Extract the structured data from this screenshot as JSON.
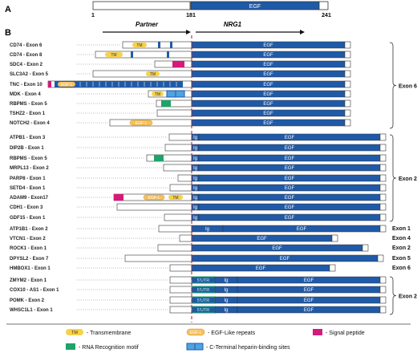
{
  "panel_a": {
    "label": "A",
    "ticks": [
      "1",
      "181",
      "241"
    ],
    "segments": [
      "Ig",
      "EGF"
    ]
  },
  "panel_b": {
    "label": "B",
    "partner": "Partner",
    "nrg1": "NRG1"
  },
  "fusions": [
    {
      "name": "CD74 - Exon 6"
    },
    {
      "name": "CD74 - Exon 8"
    },
    {
      "name": "SDC4 - Exon 2"
    },
    {
      "name": "SLC3A2 - Exon 5"
    },
    {
      "name": "TNC - Exon 10"
    },
    {
      "name": "MDK - Exon 4"
    },
    {
      "name": "RBPMS - Exon 5"
    },
    {
      "name": "TSHZ2 - Exon 1"
    },
    {
      "name": "NOTCH2 - Exon 4"
    },
    {
      "name": "ATPB1 - Exon 3"
    },
    {
      "name": "DIP2B - Exon 1"
    },
    {
      "name": "RBPMS - Exon 5"
    },
    {
      "name": "MRPL13 - Exon 2"
    },
    {
      "name": "PARP8 - Exon 1"
    },
    {
      "name": "SETD4 - Exon 1"
    },
    {
      "name": "ADAM9 - Exon17"
    },
    {
      "name": "CDH1 - Exon 3"
    },
    {
      "name": "GDF15 - Exon 1"
    },
    {
      "name": "ATP1B1 - Exon 2"
    },
    {
      "name": "VTCN1 - Exon 2"
    },
    {
      "name": "ROCK1 - Exon 1"
    },
    {
      "name": "DPYSL2 - Exon 7"
    },
    {
      "name": "HMBOX1 - Exon 1"
    },
    {
      "name": "ZMYM2 - Exon 1"
    },
    {
      "name": "COX10 - AS1 - Exon 1"
    },
    {
      "name": "POMK - Exon 2"
    },
    {
      "name": "WHSC1L1 - Exon 1"
    }
  ],
  "nrg1_labels": {
    "ig": "Ig",
    "egf": "EGF",
    "utr": "5'UTR"
  },
  "domain_labels": {
    "tm": "TM",
    "egf": "EGF-L"
  },
  "exon_groups": [
    {
      "label": "Exon 6"
    },
    {
      "label": "Exon 2"
    },
    {
      "label": "Exon 1"
    },
    {
      "label": "Exon 4"
    },
    {
      "label": "Exon 2"
    },
    {
      "label": "Exon 5"
    },
    {
      "label": "Exon 6"
    },
    {
      "label": "Exon 2"
    }
  ],
  "legend": {
    "tm_icon": "TM",
    "tm": "- Transmembrane",
    "egf_icon": "EGF-L",
    "egf": "- EGF-Like repeats",
    "signal": "- Signal peptide",
    "rrm": "- RNA Recognition motif",
    "heparin": "- C-Terminal heparin-binding sites"
  },
  "colors": {
    "blue": "#1f5aa8",
    "yellow": "#f7d24a",
    "magenta": "#d6197b",
    "green": "#1fa36a",
    "lightblue": "#4fa3e0",
    "red": "#d02020"
  }
}
